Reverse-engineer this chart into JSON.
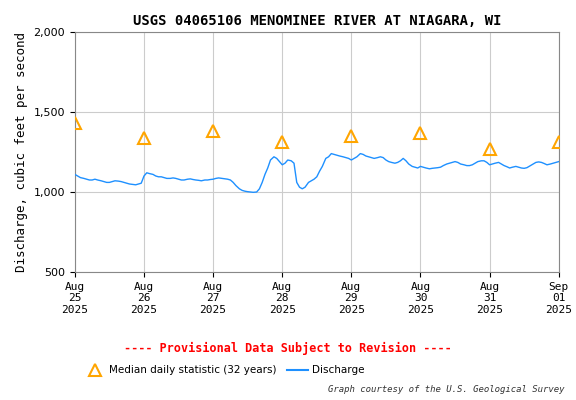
{
  "title": "USGS 04065106 MENOMINEE RIVER AT NIAGARA, WI",
  "ylabel": "Discharge, cubic feet per second",
  "xlabel_dates": [
    "Aug\n25\n2025",
    "Aug\n26\n2025",
    "Aug\n27\n2025",
    "Aug\n28\n2025",
    "Aug\n29\n2025",
    "Aug\n30\n2025",
    "Aug\n31\n2025",
    "Sep\n01\n2025"
  ],
  "xlim": [
    0,
    7
  ],
  "ylim": [
    500,
    2000
  ],
  "yticks": [
    500,
    1000,
    1500,
    2000
  ],
  "background_color": "#ffffff",
  "plot_bg_color": "#ffffff",
  "grid_color": "#cccccc",
  "line_color": "#1e90ff",
  "triangle_color": "#ffa500",
  "provisional_text": "---- Provisional Data Subject to Revision ----",
  "provisional_color": "#ff0000",
  "legend_triangle_label": "Median daily statistic (32 years)",
  "legend_line_label": "Discharge",
  "credit_text": "Graph courtesy of the U.S. Geological Survey",
  "title_fontsize": 10,
  "axis_fontsize": 9,
  "tick_fontsize": 8,
  "median_x": [
    0,
    1,
    2,
    3,
    4,
    5,
    6,
    7
  ],
  "median_y": [
    1430,
    1340,
    1380,
    1310,
    1350,
    1370,
    1270,
    1310
  ],
  "discharge_t": [
    0.0,
    0.04,
    0.08,
    0.13,
    0.17,
    0.21,
    0.25,
    0.29,
    0.33,
    0.38,
    0.42,
    0.46,
    0.5,
    0.54,
    0.58,
    0.63,
    0.67,
    0.71,
    0.75,
    0.79,
    0.83,
    0.88,
    0.92,
    0.96,
    1.0,
    1.04,
    1.08,
    1.13,
    1.17,
    1.21,
    1.25,
    1.29,
    1.33,
    1.38,
    1.42,
    1.46,
    1.5,
    1.54,
    1.58,
    1.63,
    1.67,
    1.71,
    1.75,
    1.79,
    1.83,
    1.88,
    1.92,
    1.96,
    2.0,
    2.04,
    2.08,
    2.13,
    2.17,
    2.21,
    2.25,
    2.29,
    2.33,
    2.38,
    2.42,
    2.46,
    2.5,
    2.54,
    2.58,
    2.63,
    2.67,
    2.71,
    2.75,
    2.79,
    2.83,
    2.88,
    2.92,
    2.96,
    3.0,
    3.04,
    3.08,
    3.13,
    3.17,
    3.21,
    3.25,
    3.29,
    3.33,
    3.38,
    3.42,
    3.46,
    3.5,
    3.54,
    3.58,
    3.63,
    3.67,
    3.71,
    3.75,
    3.79,
    3.83,
    3.88,
    3.92,
    3.96,
    4.0,
    4.04,
    4.08,
    4.13,
    4.17,
    4.21,
    4.25,
    4.29,
    4.33,
    4.38,
    4.42,
    4.46,
    4.5,
    4.54,
    4.58,
    4.63,
    4.67,
    4.71,
    4.75,
    4.79,
    4.83,
    4.88,
    4.92,
    4.96,
    5.0,
    5.04,
    5.08,
    5.13,
    5.17,
    5.21,
    5.25,
    5.29,
    5.33,
    5.38,
    5.42,
    5.46,
    5.5,
    5.54,
    5.58,
    5.63,
    5.67,
    5.71,
    5.75,
    5.79,
    5.83,
    5.88,
    5.92,
    5.96,
    6.0,
    6.04,
    6.08,
    6.13,
    6.17,
    6.21,
    6.25,
    6.29,
    6.33,
    6.38,
    6.42,
    6.46,
    6.5,
    6.54,
    6.58,
    6.63,
    6.67,
    6.71,
    6.75,
    6.79,
    6.83,
    6.88,
    6.92,
    6.96,
    7.0
  ],
  "discharge_y": [
    1110,
    1100,
    1090,
    1085,
    1080,
    1075,
    1075,
    1080,
    1075,
    1070,
    1065,
    1060,
    1060,
    1065,
    1070,
    1068,
    1065,
    1060,
    1055,
    1050,
    1048,
    1045,
    1050,
    1055,
    1100,
    1120,
    1115,
    1110,
    1100,
    1095,
    1095,
    1090,
    1085,
    1085,
    1088,
    1085,
    1080,
    1075,
    1075,
    1080,
    1082,
    1078,
    1075,
    1073,
    1070,
    1075,
    1075,
    1078,
    1080,
    1085,
    1088,
    1085,
    1082,
    1080,
    1075,
    1060,
    1040,
    1020,
    1010,
    1005,
    1002,
    1000,
    998,
    1000,
    1020,
    1060,
    1110,
    1150,
    1200,
    1220,
    1210,
    1190,
    1170,
    1180,
    1200,
    1195,
    1180,
    1060,
    1030,
    1020,
    1030,
    1060,
    1070,
    1080,
    1095,
    1130,
    1160,
    1210,
    1220,
    1240,
    1235,
    1230,
    1225,
    1220,
    1215,
    1210,
    1200,
    1210,
    1220,
    1240,
    1235,
    1225,
    1220,
    1215,
    1210,
    1215,
    1220,
    1215,
    1200,
    1190,
    1185,
    1180,
    1185,
    1195,
    1210,
    1195,
    1175,
    1160,
    1155,
    1150,
    1160,
    1155,
    1150,
    1145,
    1148,
    1150,
    1152,
    1155,
    1165,
    1175,
    1180,
    1185,
    1190,
    1185,
    1175,
    1170,
    1165,
    1165,
    1170,
    1180,
    1190,
    1195,
    1195,
    1185,
    1170,
    1175,
    1180,
    1185,
    1175,
    1165,
    1158,
    1150,
    1155,
    1160,
    1155,
    1150,
    1148,
    1152,
    1162,
    1175,
    1185,
    1188,
    1185,
    1178,
    1170,
    1175,
    1180,
    1185,
    1190
  ]
}
